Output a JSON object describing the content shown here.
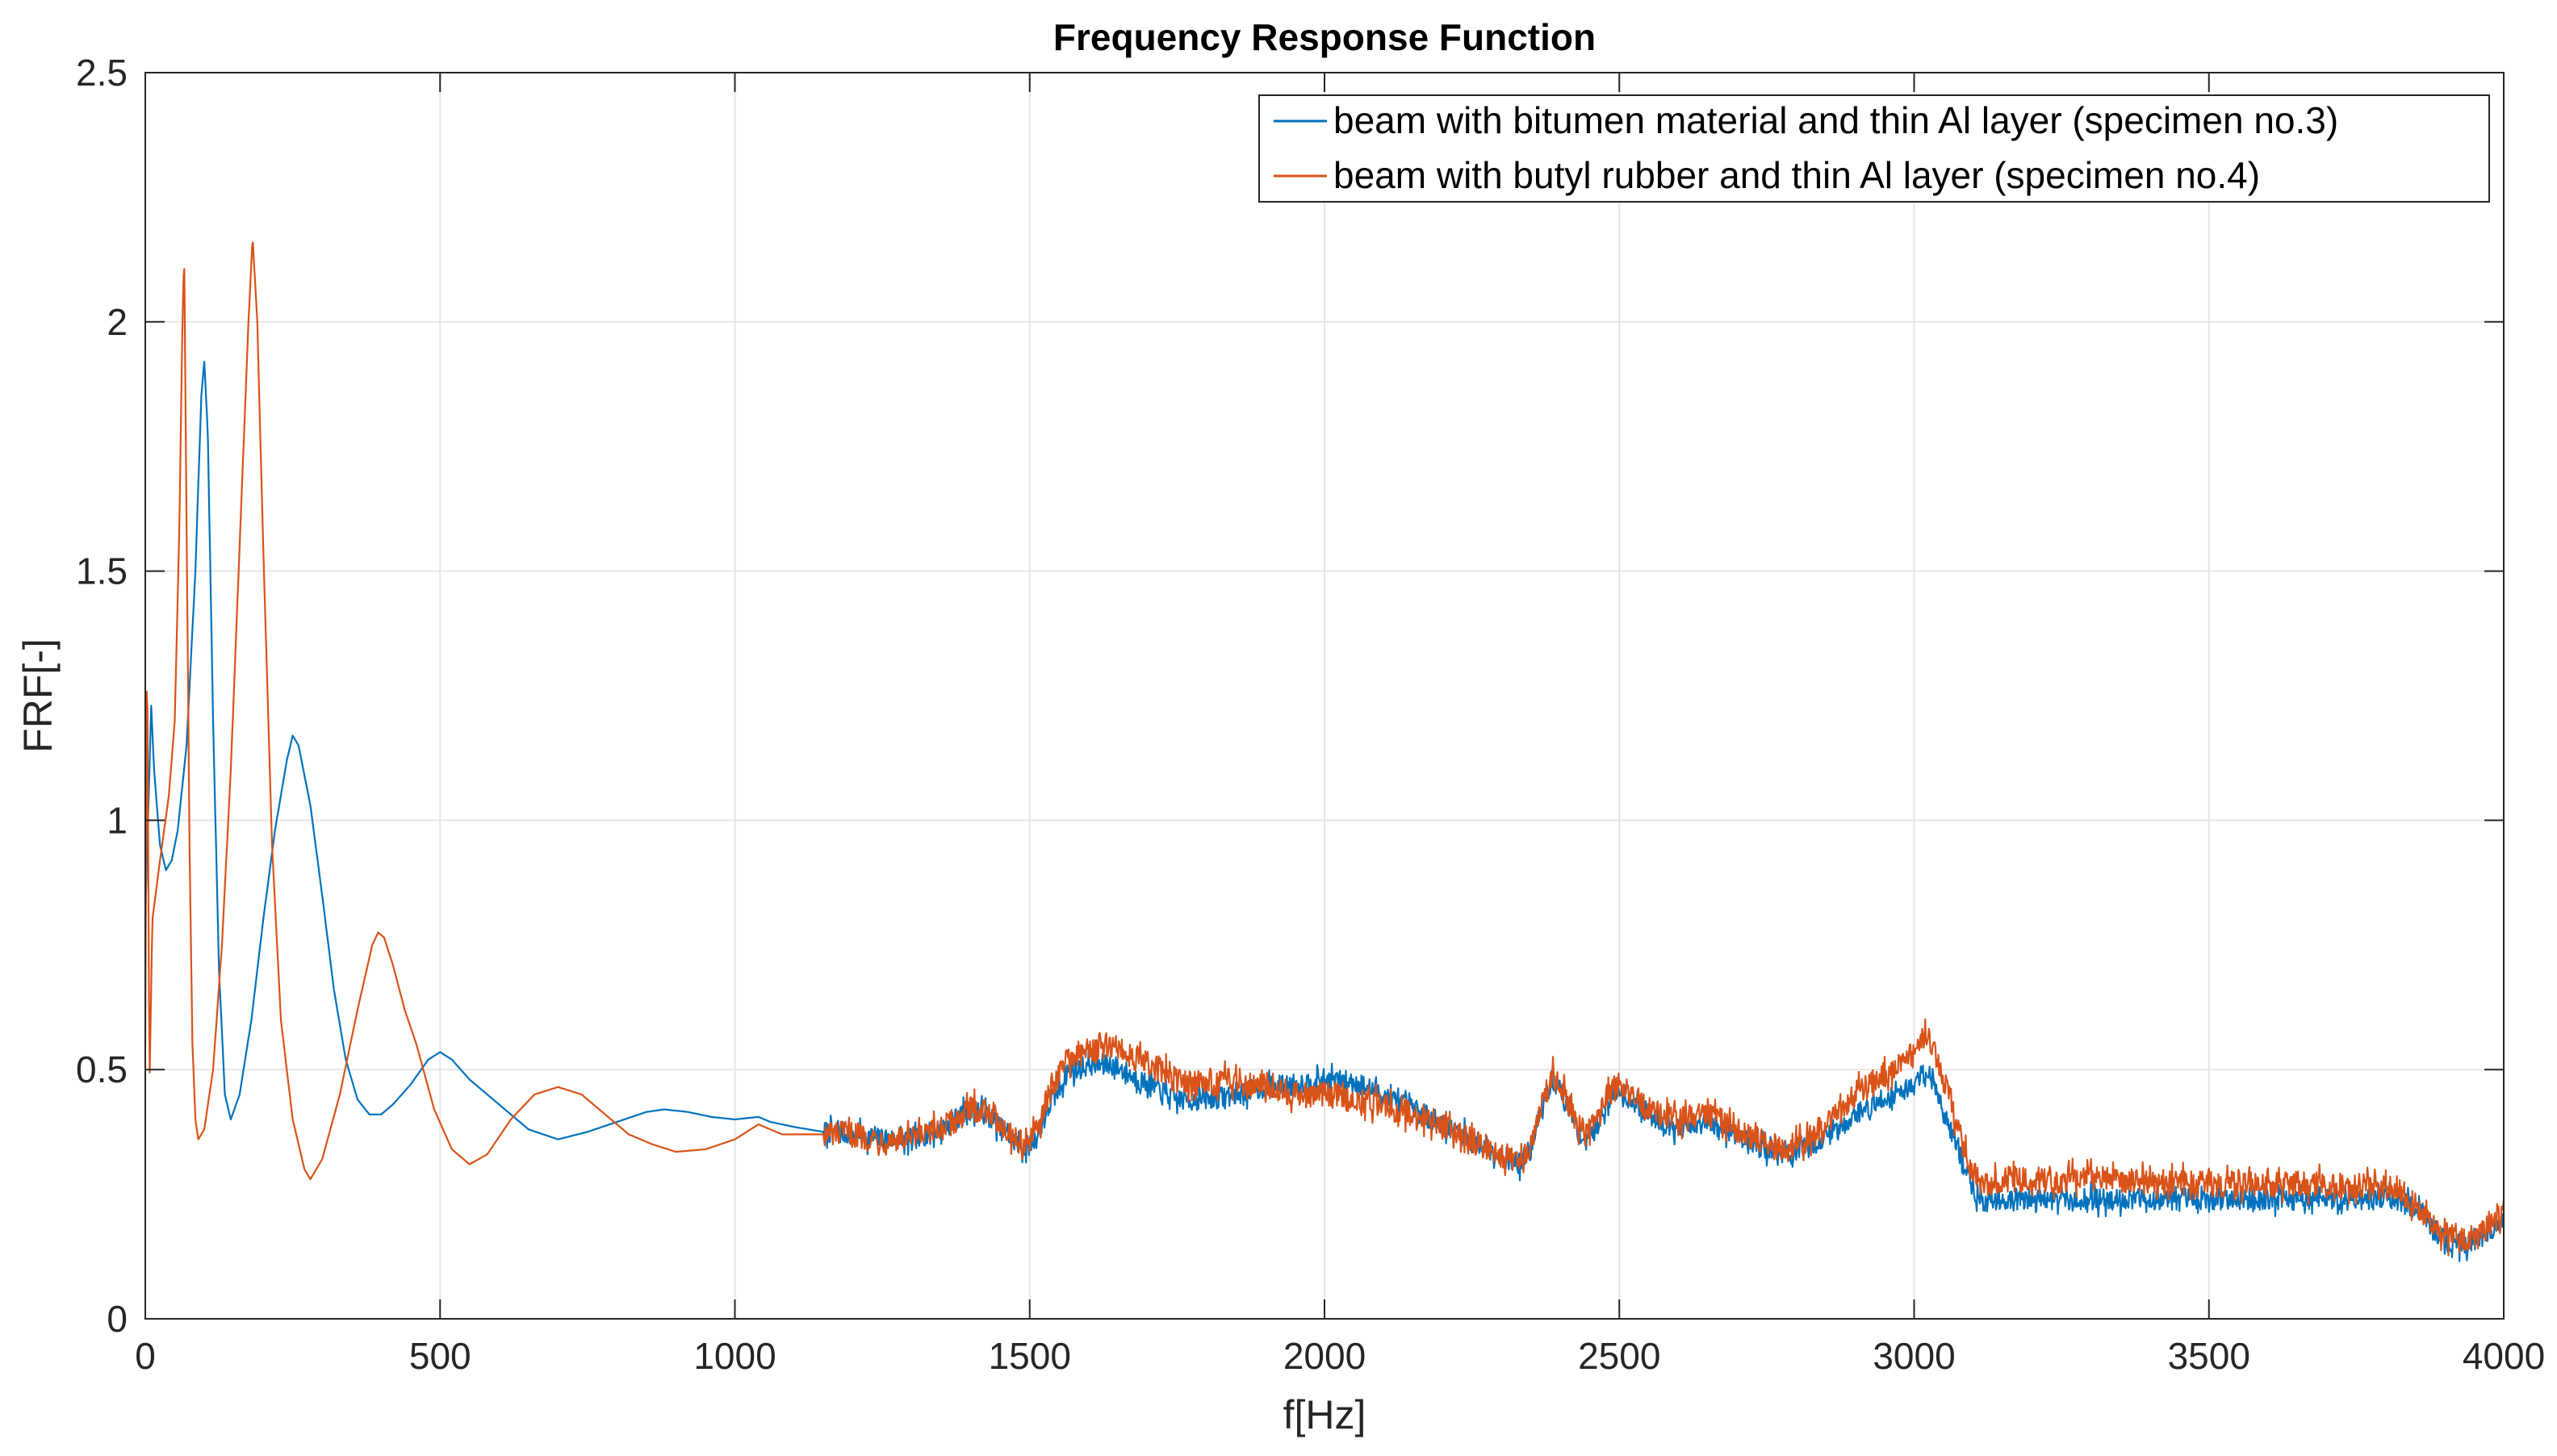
{
  "chart_data": {
    "type": "line",
    "title": "Frequency Response Function",
    "xlabel": "f[Hz]",
    "ylabel": "FRF[-]",
    "xlim": [
      0,
      4000
    ],
    "ylim": [
      0,
      2.5
    ],
    "x_ticks": [
      0,
      500,
      1000,
      1500,
      2000,
      2500,
      3000,
      3500,
      4000
    ],
    "y_ticks": [
      0,
      0.5,
      1,
      1.5,
      2,
      2.5
    ],
    "x_tick_labels": [
      "0",
      "500",
      "1000",
      "1500",
      "2000",
      "2500",
      "3000",
      "3500",
      "4000"
    ],
    "y_tick_labels": [
      "0",
      "0.5",
      "1",
      "1.5",
      "2",
      "2.5"
    ],
    "grid": true,
    "legend_position": "top-right",
    "series": [
      {
        "name": "beam with bitumen material and thin Al layer (specimen no.3)",
        "color": "#0072BD",
        "noise": 0.022,
        "points": [
          [
            0,
            0.8
          ],
          [
            10,
            1.23
          ],
          [
            15,
            1.1
          ],
          [
            25,
            0.95
          ],
          [
            35,
            0.9
          ],
          [
            45,
            0.92
          ],
          [
            55,
            0.98
          ],
          [
            70,
            1.15
          ],
          [
            85,
            1.5
          ],
          [
            95,
            1.85
          ],
          [
            100,
            1.92
          ],
          [
            106,
            1.78
          ],
          [
            115,
            1.2
          ],
          [
            125,
            0.7
          ],
          [
            135,
            0.45
          ],
          [
            145,
            0.4
          ],
          [
            160,
            0.45
          ],
          [
            180,
            0.6
          ],
          [
            200,
            0.8
          ],
          [
            220,
            0.98
          ],
          [
            240,
            1.12
          ],
          [
            250,
            1.17
          ],
          [
            260,
            1.15
          ],
          [
            280,
            1.03
          ],
          [
            300,
            0.85
          ],
          [
            320,
            0.66
          ],
          [
            340,
            0.52
          ],
          [
            360,
            0.44
          ],
          [
            380,
            0.41
          ],
          [
            400,
            0.41
          ],
          [
            420,
            0.43
          ],
          [
            450,
            0.47
          ],
          [
            480,
            0.52
          ],
          [
            500,
            0.535
          ],
          [
            520,
            0.52
          ],
          [
            550,
            0.48
          ],
          [
            600,
            0.43
          ],
          [
            650,
            0.38
          ],
          [
            700,
            0.36
          ],
          [
            750,
            0.375
          ],
          [
            800,
            0.395
          ],
          [
            850,
            0.415
          ],
          [
            880,
            0.42
          ],
          [
            920,
            0.415
          ],
          [
            960,
            0.405
          ],
          [
            1000,
            0.4
          ],
          [
            1040,
            0.405
          ],
          [
            1060,
            0.395
          ],
          [
            1100,
            0.385
          ],
          [
            1150,
            0.375
          ],
          [
            1200,
            0.37
          ],
          [
            1250,
            0.36
          ],
          [
            1300,
            0.36
          ],
          [
            1350,
            0.38
          ],
          [
            1400,
            0.42
          ],
          [
            1430,
            0.41
          ],
          [
            1460,
            0.37
          ],
          [
            1490,
            0.34
          ],
          [
            1510,
            0.36
          ],
          [
            1530,
            0.42
          ],
          [
            1550,
            0.46
          ],
          [
            1565,
            0.5
          ],
          [
            1580,
            0.5
          ],
          [
            1600,
            0.51
          ],
          [
            1640,
            0.51
          ],
          [
            1700,
            0.47
          ],
          [
            1750,
            0.44
          ],
          [
            1800,
            0.44
          ],
          [
            1850,
            0.45
          ],
          [
            1900,
            0.465
          ],
          [
            1950,
            0.47
          ],
          [
            2000,
            0.48
          ],
          [
            2050,
            0.475
          ],
          [
            2100,
            0.45
          ],
          [
            2150,
            0.42
          ],
          [
            2200,
            0.39
          ],
          [
            2250,
            0.36
          ],
          [
            2300,
            0.33
          ],
          [
            2330,
            0.31
          ],
          [
            2350,
            0.34
          ],
          [
            2370,
            0.42
          ],
          [
            2385,
            0.48
          ],
          [
            2400,
            0.46
          ],
          [
            2420,
            0.4
          ],
          [
            2440,
            0.36
          ],
          [
            2460,
            0.38
          ],
          [
            2480,
            0.44
          ],
          [
            2500,
            0.46
          ],
          [
            2520,
            0.44
          ],
          [
            2550,
            0.41
          ],
          [
            2600,
            0.38
          ],
          [
            2650,
            0.39
          ],
          [
            2700,
            0.37
          ],
          [
            2750,
            0.34
          ],
          [
            2790,
            0.33
          ],
          [
            2830,
            0.35
          ],
          [
            2870,
            0.38
          ],
          [
            2900,
            0.41
          ],
          [
            2950,
            0.44
          ],
          [
            3000,
            0.47
          ],
          [
            3020,
            0.5
          ],
          [
            3030,
            0.48
          ],
          [
            3050,
            0.42
          ],
          [
            3080,
            0.32
          ],
          [
            3100,
            0.26
          ],
          [
            3120,
            0.23
          ],
          [
            3150,
            0.24
          ],
          [
            3300,
            0.24
          ],
          [
            3500,
            0.24
          ],
          [
            3700,
            0.24
          ],
          [
            3820,
            0.24
          ],
          [
            3850,
            0.22
          ],
          [
            3880,
            0.18
          ],
          [
            3910,
            0.15
          ],
          [
            3940,
            0.15
          ],
          [
            3970,
            0.17
          ],
          [
            4000,
            0.2
          ]
        ]
      },
      {
        "name": "beam with butyl rubber and thin Al layer (specimen no.4)",
        "color": "#D95319",
        "noise": 0.026,
        "points": [
          [
            0,
            0.55
          ],
          [
            3,
            1.4
          ],
          [
            7,
            0.46
          ],
          [
            12,
            0.8
          ],
          [
            25,
            0.92
          ],
          [
            40,
            1.05
          ],
          [
            50,
            1.2
          ],
          [
            58,
            1.6
          ],
          [
            63,
            2.0
          ],
          [
            66,
            2.14
          ],
          [
            70,
            1.6
          ],
          [
            75,
            0.95
          ],
          [
            80,
            0.55
          ],
          [
            85,
            0.4
          ],
          [
            90,
            0.36
          ],
          [
            100,
            0.38
          ],
          [
            115,
            0.5
          ],
          [
            130,
            0.75
          ],
          [
            145,
            1.1
          ],
          [
            160,
            1.55
          ],
          [
            175,
            2.0
          ],
          [
            182,
            2.17
          ],
          [
            190,
            2.0
          ],
          [
            200,
            1.55
          ],
          [
            215,
            0.95
          ],
          [
            230,
            0.6
          ],
          [
            250,
            0.4
          ],
          [
            270,
            0.3
          ],
          [
            280,
            0.28
          ],
          [
            300,
            0.32
          ],
          [
            330,
            0.45
          ],
          [
            360,
            0.62
          ],
          [
            385,
            0.75
          ],
          [
            395,
            0.775
          ],
          [
            405,
            0.765
          ],
          [
            420,
            0.71
          ],
          [
            440,
            0.62
          ],
          [
            460,
            0.55
          ],
          [
            490,
            0.42
          ],
          [
            520,
            0.34
          ],
          [
            550,
            0.31
          ],
          [
            580,
            0.33
          ],
          [
            620,
            0.4
          ],
          [
            660,
            0.45
          ],
          [
            700,
            0.465
          ],
          [
            740,
            0.45
          ],
          [
            780,
            0.41
          ],
          [
            820,
            0.37
          ],
          [
            860,
            0.35
          ],
          [
            900,
            0.335
          ],
          [
            950,
            0.34
          ],
          [
            1000,
            0.36
          ],
          [
            1040,
            0.39
          ],
          [
            1080,
            0.37
          ],
          [
            1150,
            0.37
          ],
          [
            1200,
            0.37
          ],
          [
            1250,
            0.36
          ],
          [
            1300,
            0.36
          ],
          [
            1350,
            0.38
          ],
          [
            1400,
            0.42
          ],
          [
            1430,
            0.42
          ],
          [
            1460,
            0.38
          ],
          [
            1490,
            0.35
          ],
          [
            1510,
            0.37
          ],
          [
            1530,
            0.44
          ],
          [
            1560,
            0.52
          ],
          [
            1580,
            0.53
          ],
          [
            1600,
            0.54
          ],
          [
            1640,
            0.55
          ],
          [
            1700,
            0.51
          ],
          [
            1750,
            0.48
          ],
          [
            1800,
            0.47
          ],
          [
            1850,
            0.48
          ],
          [
            1900,
            0.47
          ],
          [
            1950,
            0.45
          ],
          [
            2000,
            0.45
          ],
          [
            2050,
            0.44
          ],
          [
            2100,
            0.43
          ],
          [
            2150,
            0.41
          ],
          [
            2200,
            0.39
          ],
          [
            2250,
            0.36
          ],
          [
            2300,
            0.33
          ],
          [
            2330,
            0.32
          ],
          [
            2350,
            0.35
          ],
          [
            2370,
            0.43
          ],
          [
            2385,
            0.49
          ],
          [
            2400,
            0.47
          ],
          [
            2420,
            0.41
          ],
          [
            2440,
            0.37
          ],
          [
            2460,
            0.39
          ],
          [
            2480,
            0.45
          ],
          [
            2500,
            0.47
          ],
          [
            2520,
            0.45
          ],
          [
            2550,
            0.42
          ],
          [
            2600,
            0.4
          ],
          [
            2650,
            0.41
          ],
          [
            2700,
            0.38
          ],
          [
            2750,
            0.35
          ],
          [
            2790,
            0.34
          ],
          [
            2830,
            0.37
          ],
          [
            2870,
            0.41
          ],
          [
            2900,
            0.45
          ],
          [
            2950,
            0.49
          ],
          [
            3000,
            0.53
          ],
          [
            3020,
            0.57
          ],
          [
            3030,
            0.55
          ],
          [
            3050,
            0.48
          ],
          [
            3080,
            0.36
          ],
          [
            3100,
            0.29
          ],
          [
            3120,
            0.27
          ],
          [
            3150,
            0.28
          ],
          [
            3300,
            0.28
          ],
          [
            3500,
            0.27
          ],
          [
            3700,
            0.27
          ],
          [
            3820,
            0.26
          ],
          [
            3850,
            0.23
          ],
          [
            3880,
            0.19
          ],
          [
            3910,
            0.16
          ],
          [
            3940,
            0.16
          ],
          [
            3970,
            0.18
          ],
          [
            4000,
            0.22
          ]
        ]
      }
    ]
  }
}
